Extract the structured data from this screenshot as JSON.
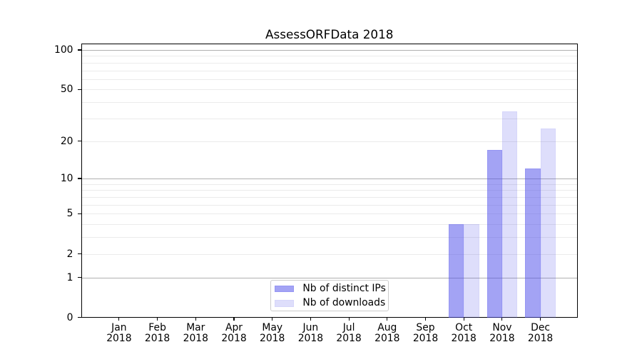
{
  "chart_data": {
    "type": "bar",
    "title": "AssessORFData 2018",
    "categories": [
      "Jan",
      "Feb",
      "Mar",
      "Apr",
      "May",
      "Jun",
      "Jul",
      "Aug",
      "Sep",
      "Oct",
      "Nov",
      "Dec"
    ],
    "category_year": "2018",
    "series": [
      {
        "name": "Nb of distinct IPs",
        "base_color": "#5050eb",
        "fill_alpha": 0.525,
        "edge_alpha": 0.6,
        "values": [
          0,
          0,
          0,
          0,
          0,
          0,
          0,
          0,
          0,
          4,
          17,
          12
        ]
      },
      {
        "name": "Nb of downloads",
        "base_color": "#5050eb",
        "fill_alpha": 0.19,
        "edge_alpha": 0.235,
        "values": [
          0,
          0,
          0,
          0,
          0,
          0,
          0,
          0,
          0,
          4,
          34,
          25
        ]
      }
    ],
    "yscale": "log10(1+x)",
    "ylim": [
      0,
      112.5
    ],
    "y_tick_values": [
      0,
      1,
      2,
      5,
      10,
      20,
      50,
      100
    ],
    "grid_major_values": [
      1,
      10,
      100
    ],
    "grid_minor_values": [
      2,
      3,
      4,
      5,
      6,
      7,
      8,
      9,
      20,
      30,
      40,
      50,
      60,
      70,
      80,
      90
    ],
    "grid_major_color": "#b0b0b0",
    "grid_minor_color": "#ebebeb",
    "axis_color": "#000000",
    "text_color": "#000000",
    "legend": {
      "position": "bottom-center",
      "border_color": "#cccccc",
      "background": "#ffffff"
    }
  }
}
